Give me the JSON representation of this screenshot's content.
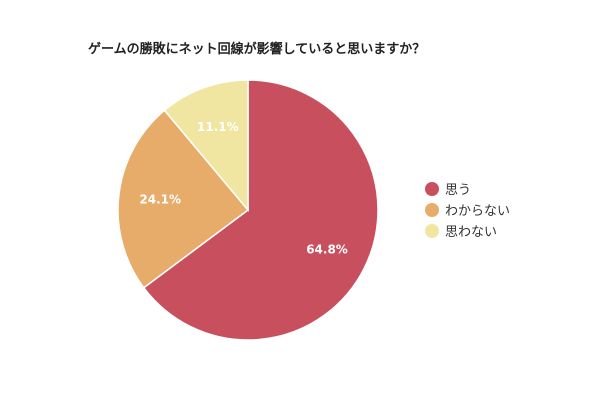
{
  "chart_data": {
    "type": "pie",
    "title": "ゲームの勝敗にネット回線が影響していると思いますか？",
    "categories": [
      "思う",
      "わからない",
      "思わない"
    ],
    "values": [
      64.8,
      24.1,
      11.1
    ],
    "value_labels": [
      "64.8%",
      "24.1%",
      "11.1%"
    ],
    "colors": [
      "#c84f5e",
      "#e8ac6a",
      "#f0e6a2"
    ],
    "legend_position": "right"
  }
}
